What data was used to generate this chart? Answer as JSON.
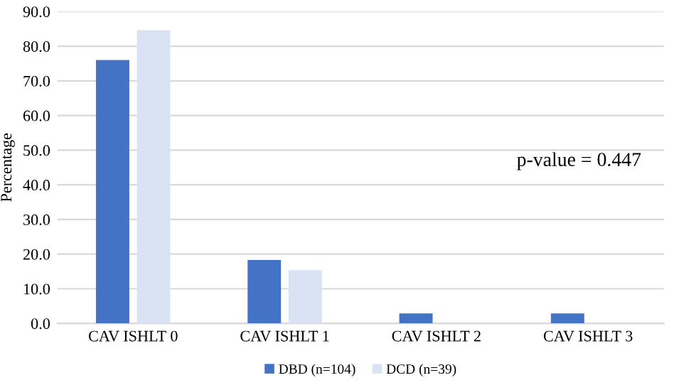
{
  "chart_data": {
    "type": "bar",
    "ylabel": "Percentage",
    "categories": [
      "CAV ISHLT 0",
      "CAV ISHLT 1",
      "CAV ISHLT 2",
      "CAV ISHLT 3"
    ],
    "series": [
      {
        "name": "DBD (n=104)",
        "color": "#4472c4",
        "values": [
          76.0,
          18.3,
          2.9,
          2.9
        ]
      },
      {
        "name": "DCD (n=39)",
        "color": "#dae3f3",
        "values": [
          84.6,
          15.4,
          0,
          0
        ]
      }
    ],
    "ylim": [
      0,
      90
    ],
    "yticks": [
      {
        "value": 0,
        "label": "0.0"
      },
      {
        "value": 10,
        "label": "10.0"
      },
      {
        "value": 20,
        "label": "20.0"
      },
      {
        "value": 30,
        "label": "30.0"
      },
      {
        "value": 40,
        "label": "40.0"
      },
      {
        "value": 50,
        "label": "50.0"
      },
      {
        "value": 60,
        "label": "60.0"
      },
      {
        "value": 70,
        "label": "70.0"
      },
      {
        "value": 80,
        "label": "80.0"
      },
      {
        "value": 90,
        "label": "90.0"
      }
    ],
    "annotations": [
      "p-value = 0.447"
    ],
    "grid": "y",
    "legend": "bottom"
  }
}
